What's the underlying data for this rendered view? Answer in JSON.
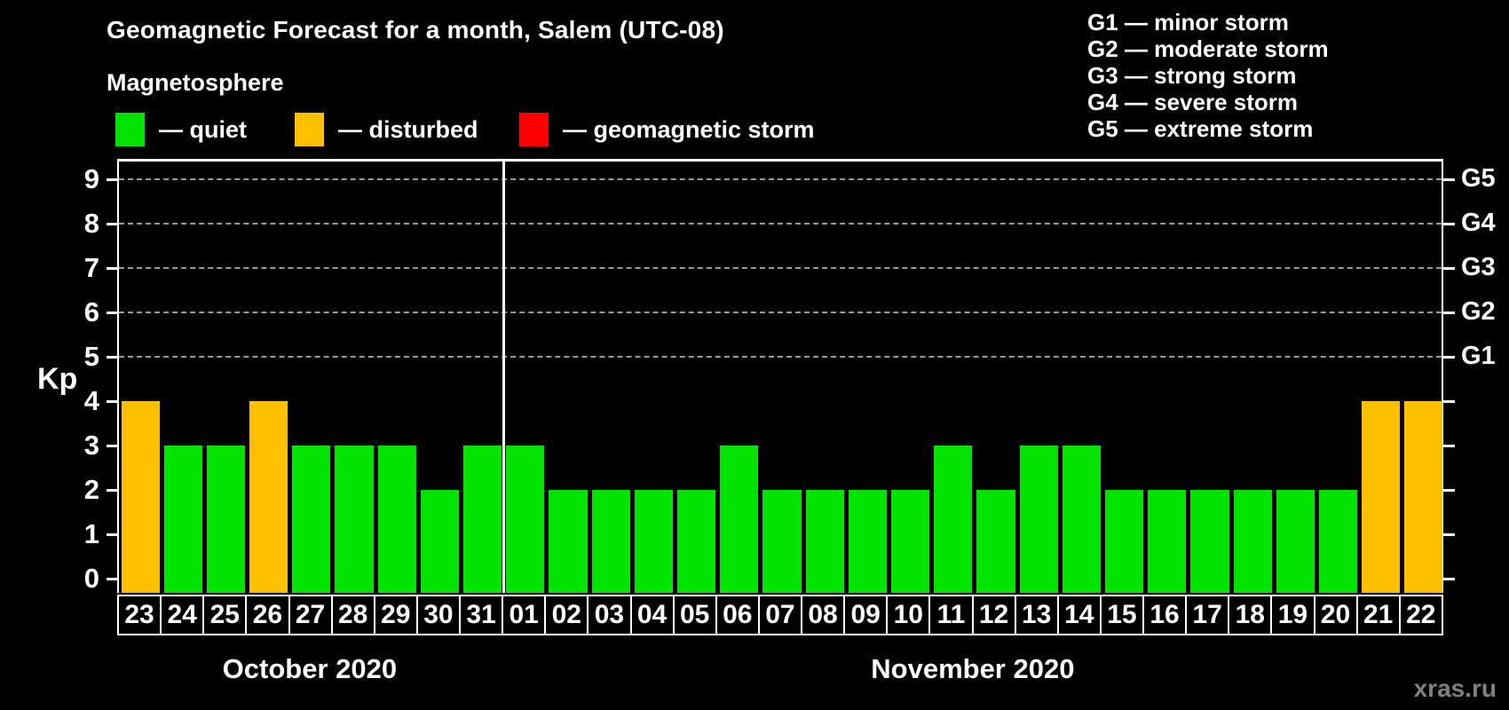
{
  "title": "Geomagnetic Forecast for a month, Salem (UTC-08)",
  "subtitle": "Magnetosphere",
  "legend": {
    "items": [
      {
        "key": "quiet",
        "label": "— quiet",
        "color": "#00e400"
      },
      {
        "key": "disturbed",
        "label": "— disturbed",
        "color": "#ffc000"
      },
      {
        "key": "storm",
        "label": "— geomagnetic storm",
        "color": "#ff0000"
      }
    ]
  },
  "g_scale_legend": [
    "G1 — minor storm",
    "G2 — moderate storm",
    "G3 — strong storm",
    "G4 — severe storm",
    "G5 — extreme storm"
  ],
  "watermark": "xras.ru",
  "chart_data": {
    "type": "bar",
    "title": "Geomagnetic Forecast for a month, Salem (UTC-08)",
    "ylabel": "Kp",
    "ylim": [
      0,
      9
    ],
    "yticks": [
      0,
      1,
      2,
      3,
      4,
      5,
      6,
      7,
      8,
      9
    ],
    "grid": "dashed horizontal at Kp 5-9",
    "grid_levels": [
      5,
      6,
      7,
      8,
      9
    ],
    "right_axis_labels": [
      {
        "label": "G1",
        "kp": 5
      },
      {
        "label": "G2",
        "kp": 6
      },
      {
        "label": "G3",
        "kp": 7
      },
      {
        "label": "G4",
        "kp": 8
      },
      {
        "label": "G5",
        "kp": 9
      }
    ],
    "colors": {
      "quiet": "#00e400",
      "disturbed": "#ffc000",
      "storm": "#ff0000"
    },
    "months": [
      {
        "label": "October 2020",
        "days": [
          {
            "day": "23",
            "kp": 4,
            "status": "disturbed"
          },
          {
            "day": "24",
            "kp": 3,
            "status": "quiet"
          },
          {
            "day": "25",
            "kp": 3,
            "status": "quiet"
          },
          {
            "day": "26",
            "kp": 4,
            "status": "disturbed"
          },
          {
            "day": "27",
            "kp": 3,
            "status": "quiet"
          },
          {
            "day": "28",
            "kp": 3,
            "status": "quiet"
          },
          {
            "day": "29",
            "kp": 3,
            "status": "quiet"
          },
          {
            "day": "30",
            "kp": 2,
            "status": "quiet"
          },
          {
            "day": "31",
            "kp": 3,
            "status": "quiet"
          }
        ]
      },
      {
        "label": "November 2020",
        "days": [
          {
            "day": "01",
            "kp": 3,
            "status": "quiet"
          },
          {
            "day": "02",
            "kp": 2,
            "status": "quiet"
          },
          {
            "day": "03",
            "kp": 2,
            "status": "quiet"
          },
          {
            "day": "04",
            "kp": 2,
            "status": "quiet"
          },
          {
            "day": "05",
            "kp": 2,
            "status": "quiet"
          },
          {
            "day": "06",
            "kp": 3,
            "status": "quiet"
          },
          {
            "day": "07",
            "kp": 2,
            "status": "quiet"
          },
          {
            "day": "08",
            "kp": 2,
            "status": "quiet"
          },
          {
            "day": "09",
            "kp": 2,
            "status": "quiet"
          },
          {
            "day": "10",
            "kp": 2,
            "status": "quiet"
          },
          {
            "day": "11",
            "kp": 3,
            "status": "quiet"
          },
          {
            "day": "12",
            "kp": 2,
            "status": "quiet"
          },
          {
            "day": "13",
            "kp": 3,
            "status": "quiet"
          },
          {
            "day": "14",
            "kp": 3,
            "status": "quiet"
          },
          {
            "day": "15",
            "kp": 2,
            "status": "quiet"
          },
          {
            "day": "16",
            "kp": 2,
            "status": "quiet"
          },
          {
            "day": "17",
            "kp": 2,
            "status": "quiet"
          },
          {
            "day": "18",
            "kp": 2,
            "status": "quiet"
          },
          {
            "day": "19",
            "kp": 2,
            "status": "quiet"
          },
          {
            "day": "20",
            "kp": 2,
            "status": "quiet"
          },
          {
            "day": "21",
            "kp": 4,
            "status": "disturbed"
          },
          {
            "day": "22",
            "kp": 4,
            "status": "disturbed"
          }
        ]
      }
    ]
  }
}
